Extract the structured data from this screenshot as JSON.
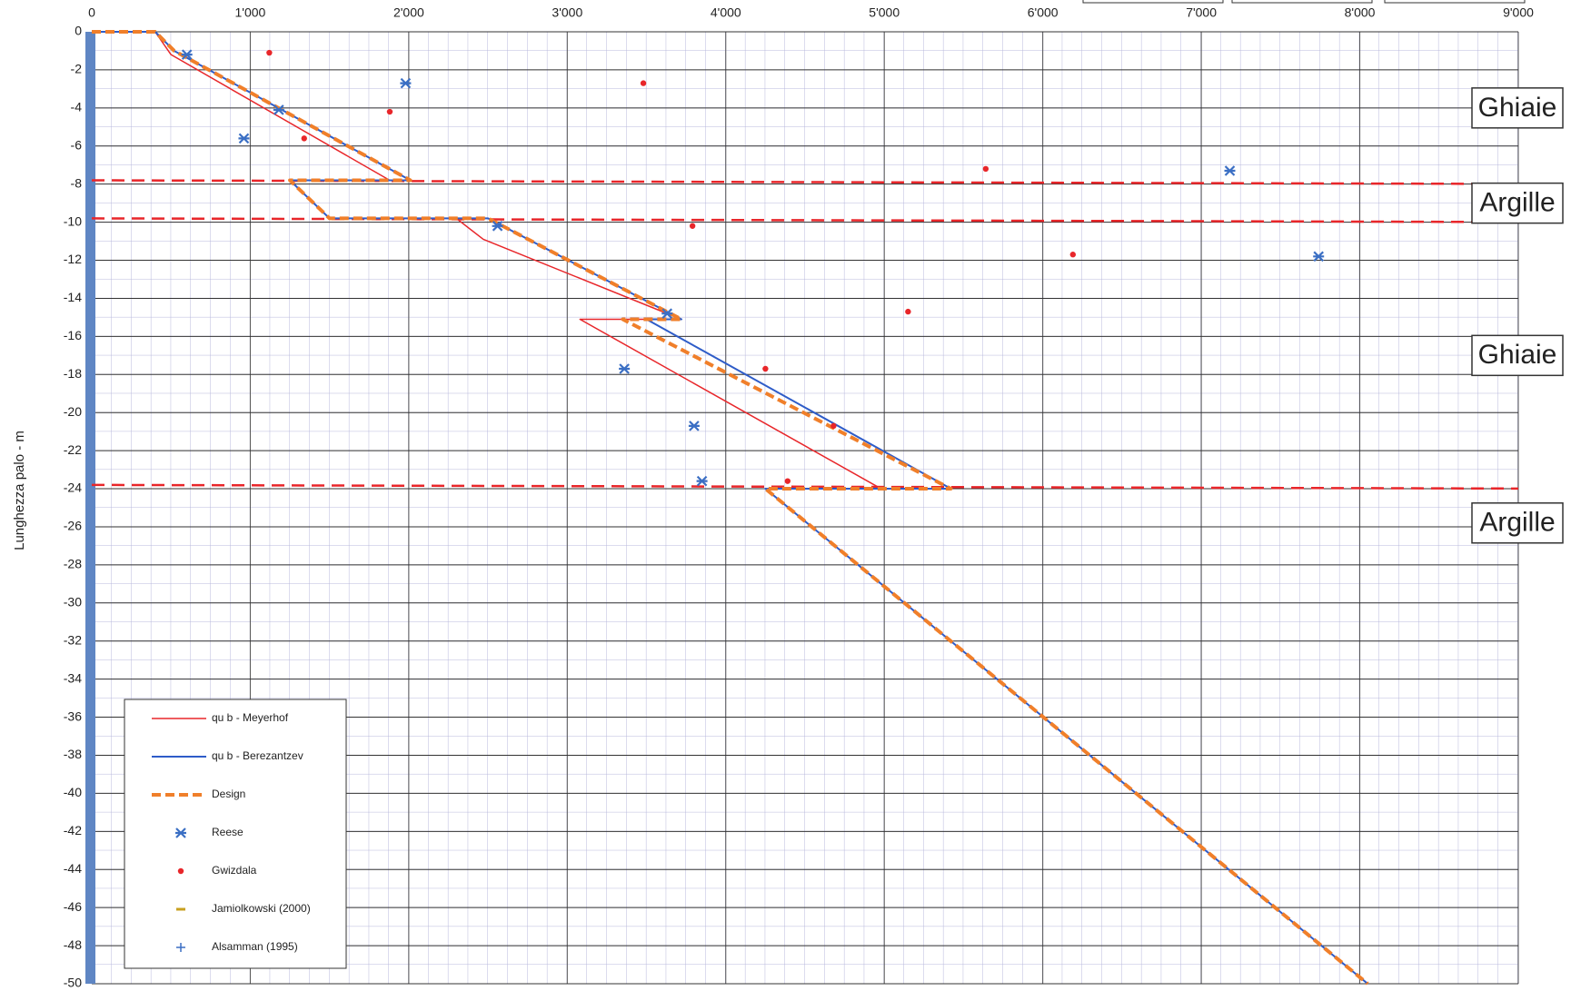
{
  "chart_data": {
    "type": "line",
    "y_label": "Lunghezza palo - m",
    "xlim": [
      0,
      9000
    ],
    "xticks": [
      0,
      {
        "value": 1000,
        "label": "1'000"
      },
      {
        "value": 2000,
        "label": "2'000"
      },
      {
        "value": 3000,
        "label": "3'000"
      },
      {
        "value": 4000,
        "label": "4'000"
      },
      {
        "value": 5000,
        "label": "5'000"
      },
      {
        "value": 6000,
        "label": "6'000"
      },
      {
        "value": 7000,
        "label": "7'000"
      },
      {
        "value": 8000,
        "label": "8'000"
      },
      {
        "value": 9000,
        "label": "9'000"
      }
    ],
    "ylim": [
      -50,
      0
    ],
    "yticks": [
      0,
      -2,
      -4,
      -6,
      -8,
      -10,
      -12,
      -14,
      -16,
      -18,
      -20,
      -22,
      -24,
      -26,
      -28,
      -30,
      -32,
      -34,
      -36,
      -38,
      -40,
      -42,
      -44,
      -46,
      -48,
      -50
    ],
    "grid": true,
    "legend": "lower left",
    "boundaries": [
      -7.8,
      -9.8,
      -23.8
    ],
    "boundary_color": "#e8262a",
    "annotations": [
      {
        "text": "Ghiaie",
        "y": -4
      },
      {
        "text": "Argille",
        "y": -9
      },
      {
        "text": "Ghiaie",
        "y": -17
      },
      {
        "text": "Argille",
        "y": -25.8
      }
    ],
    "series": [
      {
        "name": "qu b  - Meyerhof",
        "kind": "line",
        "color": "#e8262a",
        "width": 1.5,
        "x": [
          0,
          400,
          500,
          1880,
          1250,
          1350,
          1500,
          2300,
          2470,
          3720,
          3080,
          4980,
          5400,
          4250,
          8050
        ],
        "values": [
          0,
          0,
          -1.2,
          -7.8,
          -7.8,
          -8.6,
          -9.8,
          -9.8,
          -10.9,
          -15.1,
          -15.1,
          -24,
          -24,
          -24,
          -50
        ]
      },
      {
        "name": "qu b  - Berezantzev",
        "kind": "line",
        "color": "#2e5cc8",
        "width": 2,
        "x": [
          0,
          400,
          520,
          2010,
          1250,
          1350,
          1500,
          2500,
          3720,
          3500,
          5420,
          4250,
          8050
        ],
        "values": [
          0,
          0,
          -1,
          -7.8,
          -7.8,
          -8.6,
          -9.8,
          -9.8,
          -15.1,
          -15.1,
          -24,
          -24,
          -50
        ]
      },
      {
        "name": "Design",
        "kind": "dashed",
        "color": "#f07f2a",
        "width": 4,
        "x": [
          0,
          400,
          520,
          2010,
          1250,
          1350,
          1500,
          2500,
          3720,
          3350,
          5420,
          4250,
          8050
        ],
        "values": [
          0,
          0,
          -1,
          -7.8,
          -7.8,
          -8.6,
          -9.8,
          -9.8,
          -15.1,
          -15.1,
          -24,
          -24,
          -50
        ]
      },
      {
        "name": "Reese",
        "kind": "cross",
        "color": "#3b6fc4",
        "x": [
          600,
          1980,
          1180,
          960,
          7180,
          2560,
          7740,
          3630,
          3360,
          3800,
          3850
        ],
        "values": [
          -1.2,
          -2.7,
          -4.1,
          -5.6,
          -7.3,
          -10.2,
          -11.8,
          -14.8,
          -17.7,
          -20.7,
          -23.6
        ]
      },
      {
        "name": "Gwizdala",
        "kind": "dot",
        "color": "#e8262a",
        "x": [
          1120,
          3480,
          1880,
          1340,
          5640,
          3790,
          6190,
          5150,
          4250,
          4680,
          4390
        ],
        "values": [
          -1.1,
          -2.7,
          -4.2,
          -5.6,
          -7.2,
          -10.2,
          -11.7,
          -14.7,
          -17.7,
          -20.7,
          -23.6
        ]
      },
      {
        "name": "Jamiolkowski (2000)",
        "kind": "dash",
        "color": "#c8a020",
        "x": [],
        "values": []
      },
      {
        "name": "Alsamman (1995)",
        "kind": "plus",
        "color": "#3b6fc4",
        "x": [],
        "values": []
      }
    ]
  }
}
